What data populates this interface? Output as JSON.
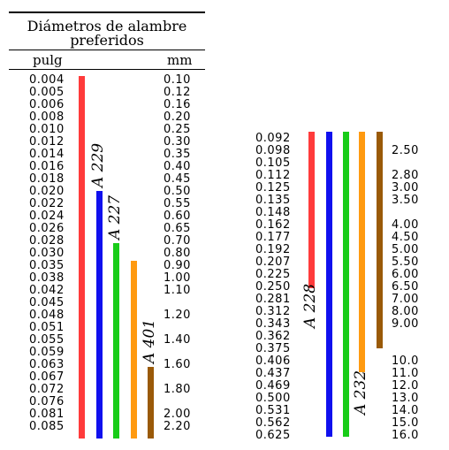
{
  "table": {
    "title_line1": "Diámetros de alambre",
    "title_line2": "preferidos",
    "col_in": "pulg",
    "col_mm": "mm"
  },
  "left_in": [
    "0.004",
    "0.005",
    "0.006",
    "0.008",
    "0.010",
    "0.012",
    "0.014",
    "0.016",
    "0.018",
    "0.020",
    "0.022",
    "0.024",
    "0.026",
    "0.028",
    "0.030",
    "0.035",
    "0.038",
    "0.042",
    "0.045",
    "0.048",
    "0.051",
    "0.055",
    "0.059",
    "0.063",
    "0.067",
    "0.072",
    "0.076",
    "0.081",
    "0.085"
  ],
  "left_mm": [
    "0.10",
    "0.12",
    "0.16",
    "0.20",
    "0.25",
    "0.30",
    "0.35",
    "0.40",
    "0.45",
    "0.50",
    "0.55",
    "0.60",
    "0.65",
    "0.70",
    "0.80",
    "0.90",
    "1.00",
    "1.10",
    "",
    "1.20",
    "",
    "1.40",
    "",
    "1.60",
    "",
    "1.80",
    "",
    "2.00",
    "2.20"
  ],
  "right_in": [
    "0.092",
    "0.098",
    "0.105",
    "0.112",
    "0.125",
    "0.135",
    "0.148",
    "0.162",
    "0.177",
    "0.192",
    "0.207",
    "0.225",
    "0.250",
    "0.281",
    "0.312",
    "0.343",
    "0.362",
    "0.375",
    "0.406",
    "0.437",
    "0.469",
    "0.500",
    "0.531",
    "0.562",
    "0.625"
  ],
  "right_mm": [
    "",
    "2.50",
    "",
    "2.80",
    "3.00",
    "3.50",
    "",
    "4.00",
    "4.50",
    "5.00",
    "5.50",
    "6.00",
    "6.50",
    "7.00",
    "8.00",
    "9.00",
    "",
    "",
    "10.0",
    "11.0",
    "12.0",
    "13.0",
    "14.0",
    "15.0",
    "16.0"
  ],
  "materials": {
    "a228": "A 228",
    "a229": "A 229",
    "a227": "A 227",
    "a401": "A 401",
    "a232": "A 232"
  },
  "colors": {
    "red": "#ff3b3b",
    "blue": "#1010ee",
    "green": "#18cc18",
    "orange": "#ff9a10",
    "brown": "#9a5a08"
  }
}
